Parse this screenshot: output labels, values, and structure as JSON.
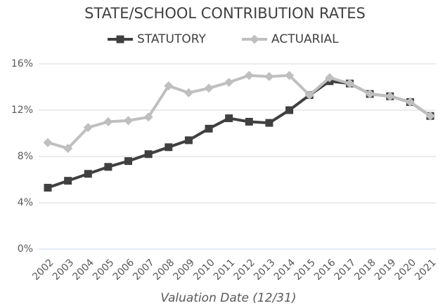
{
  "chart_data": {
    "type": "line",
    "title": "STATE/SCHOOL CONTRIBUTION RATES",
    "x_label": "Valuation Date (12/31)",
    "categories": [
      "2002",
      "2003",
      "2004",
      "2005",
      "2006",
      "2007",
      "2008",
      "2009",
      "2010",
      "2011",
      "2012",
      "2013",
      "2014",
      "2015",
      "2016",
      "2017",
      "2018",
      "2019",
      "2020",
      "2021"
    ],
    "series": [
      {
        "name": "STATUTORY",
        "color": "#404040",
        "marker": "square",
        "values": [
          5.3,
          5.9,
          6.5,
          7.1,
          7.6,
          8.2,
          8.8,
          9.4,
          10.4,
          11.3,
          11.0,
          10.9,
          12.0,
          13.3,
          14.5,
          14.3,
          13.4,
          13.2,
          12.7,
          11.5
        ]
      },
      {
        "name": "ACTUARIAL",
        "color": "#bfbfbf",
        "marker": "diamond",
        "values": [
          9.2,
          8.7,
          10.5,
          11.0,
          11.1,
          11.4,
          14.1,
          13.5,
          13.9,
          14.4,
          15.0,
          14.9,
          15.0,
          13.3,
          14.8,
          14.3,
          13.4,
          13.2,
          12.7,
          11.5
        ]
      }
    ],
    "ylim": [
      0,
      16
    ],
    "yticks": [
      {
        "value": 0,
        "label": "0%"
      },
      {
        "value": 4,
        "label": "4%"
      },
      {
        "value": 8,
        "label": "8%"
      },
      {
        "value": 12,
        "label": "12%"
      },
      {
        "value": 16,
        "label": "16%"
      }
    ],
    "grid": true,
    "legend": "top"
  }
}
